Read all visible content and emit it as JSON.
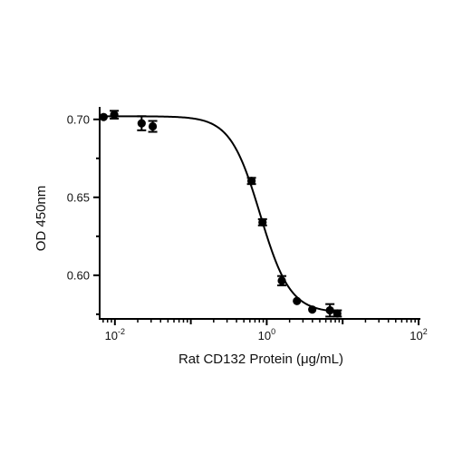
{
  "chart_data": {
    "type": "scatter",
    "xlabel": "Rat CD132 Protein (μg/mL)",
    "ylabel": "OD 450nm",
    "x_scale": "log10",
    "xlim": [
      0.0063,
      100
    ],
    "ylim": [
      0.572,
      0.708
    ],
    "x_ticks": [
      {
        "base": "10",
        "exp": "-2",
        "value": 0.01
      },
      {
        "base": "10",
        "exp": "0",
        "value": 1
      },
      {
        "base": "10",
        "exp": "2",
        "value": 100
      }
    ],
    "y_ticks": [
      {
        "label": "0.70",
        "value": 0.7
      },
      {
        "label": "0.65",
        "value": 0.65
      },
      {
        "label": "0.60",
        "value": 0.6
      }
    ],
    "series": [
      {
        "points": [
          {
            "x": 0.0071,
            "y": 0.7015,
            "err": 0.0
          },
          {
            "x": 0.0098,
            "y": 0.703,
            "err": 0.0025
          },
          {
            "x": 0.0225,
            "y": 0.6975,
            "err": 0.0045
          },
          {
            "x": 0.0315,
            "y": 0.6955,
            "err": 0.0035
          },
          {
            "x": 0.63,
            "y": 0.6605,
            "err": 0.002
          },
          {
            "x": 0.88,
            "y": 0.634,
            "err": 0.002
          },
          {
            "x": 1.58,
            "y": 0.5965,
            "err": 0.003
          },
          {
            "x": 2.5,
            "y": 0.5835,
            "err": 0.0
          },
          {
            "x": 3.98,
            "y": 0.578,
            "err": 0.0
          },
          {
            "x": 6.8,
            "y": 0.5775,
            "err": 0.004
          },
          {
            "x": 8.5,
            "y": 0.5755,
            "err": 0.002
          }
        ],
        "fit": {
          "model": "4PL",
          "top": 0.702,
          "bottom": 0.576,
          "ec50": 0.82,
          "hill": 2.2
        }
      }
    ]
  }
}
